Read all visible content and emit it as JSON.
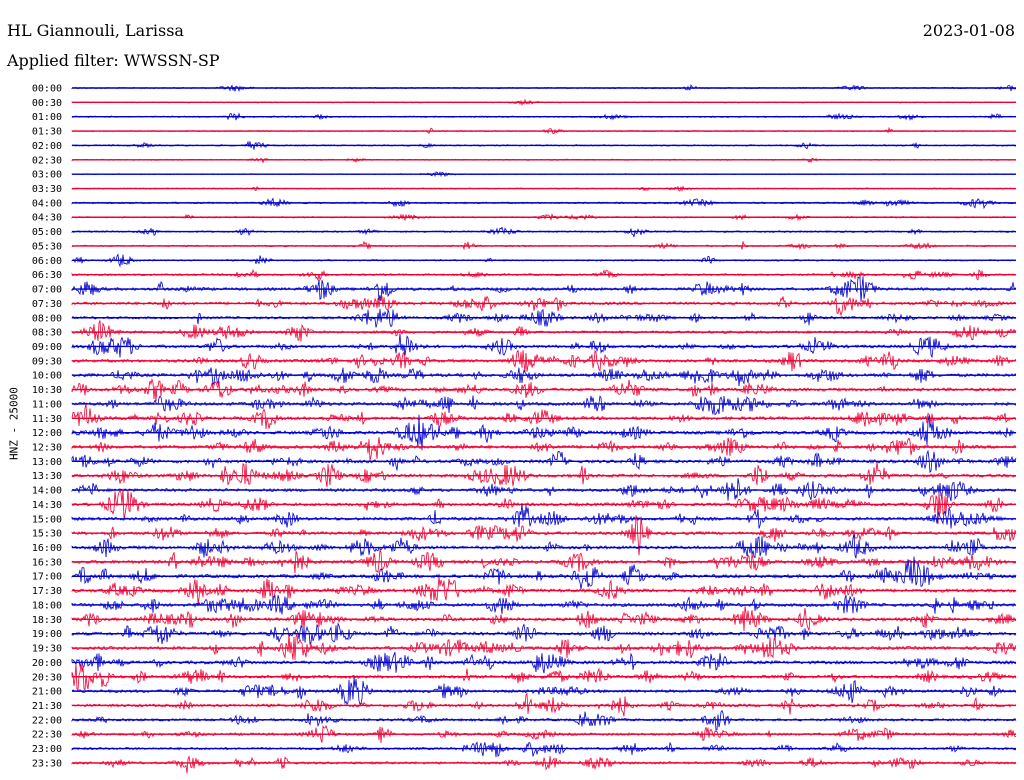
{
  "header": {
    "station": "HL Giannouli, Larissa",
    "date": "2023-01-08",
    "filter": "Applied filter: WWSSN-SP"
  },
  "chart_data": {
    "type": "line",
    "ylabel": "HNZ - 25000",
    "title": "",
    "xlabel": "",
    "colors": [
      "#0000cc",
      "#ee0033"
    ],
    "grid": false,
    "legend": "none",
    "rows": [
      "00:00",
      "00:30",
      "01:00",
      "01:30",
      "02:00",
      "02:30",
      "03:00",
      "03:30",
      "04:00",
      "04:30",
      "05:00",
      "05:30",
      "06:00",
      "06:30",
      "07:00",
      "07:30",
      "08:00",
      "08:30",
      "09:00",
      "09:30",
      "10:00",
      "10:30",
      "11:00",
      "11:30",
      "12:00",
      "12:30",
      "13:00",
      "13:30",
      "14:00",
      "14:30",
      "15:00",
      "15:30",
      "16:00",
      "16:30",
      "17:00",
      "17:30",
      "18:00",
      "18:30",
      "19:00",
      "19:30",
      "20:00",
      "20:30",
      "21:00",
      "21:30",
      "22:00",
      "22:30",
      "23:00",
      "23:30"
    ],
    "activity": [
      0.15,
      0.05,
      0.2,
      0.12,
      0.22,
      0.12,
      0.02,
      0.1,
      0.3,
      0.2,
      0.3,
      0.25,
      0.25,
      0.4,
      0.7,
      0.7,
      0.6,
      0.6,
      0.8,
      0.8,
      0.85,
      0.8,
      0.85,
      0.85,
      0.9,
      0.85,
      0.85,
      0.85,
      0.8,
      0.8,
      0.8,
      0.8,
      0.85,
      0.85,
      0.9,
      0.9,
      0.85,
      0.85,
      0.85,
      0.85,
      0.85,
      0.8,
      0.75,
      0.7,
      0.6,
      0.6,
      0.55,
      0.55
    ]
  }
}
